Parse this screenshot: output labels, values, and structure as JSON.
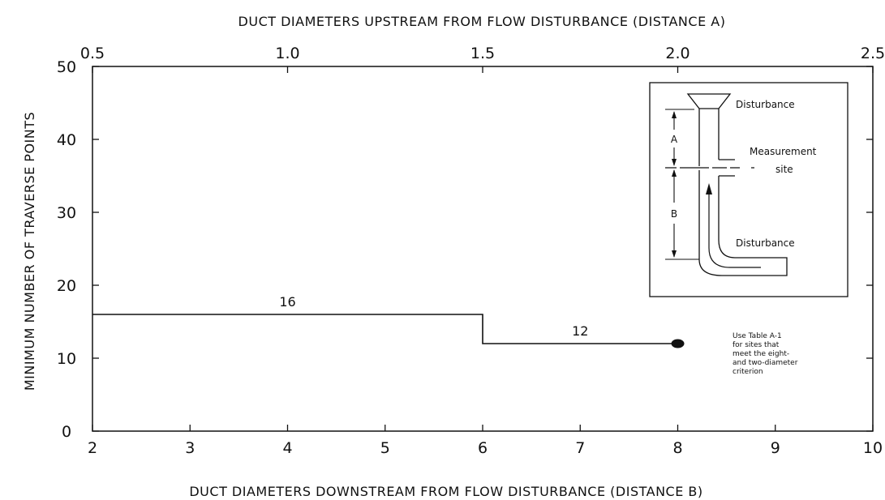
{
  "chart_data": {
    "type": "line",
    "title": "",
    "xlabel_bottom": "DUCT DIAMETERS DOWNSTREAM FROM FLOW DISTURBANCE (DISTANCE B)",
    "xlabel_top": "DUCT DIAMETERS UPSTREAM FROM FLOW DISTURBANCE (DISTANCE A)",
    "ylabel": "MINIMUM NUMBER OF TRAVERSE POINTS",
    "xlim_bottom": [
      2,
      10
    ],
    "xlim_top": [
      0.5,
      2.5
    ],
    "ylim": [
      0,
      50
    ],
    "x_ticks_bottom": [
      "2",
      "3",
      "4",
      "5",
      "6",
      "7",
      "8",
      "9",
      "10"
    ],
    "x_ticks_top": [
      "0.5",
      "1.0",
      "1.5",
      "2.0",
      "2.5"
    ],
    "y_ticks": [
      "0",
      "10",
      "20",
      "30",
      "40",
      "50"
    ],
    "grid": false,
    "series": [
      {
        "x": [
          2,
          6,
          6,
          8
        ],
        "y": [
          16,
          16,
          12,
          12
        ],
        "segment_labels": [
          "16",
          "12"
        ]
      }
    ],
    "endpoint": {
      "x": 8,
      "y": 12
    },
    "annotation": {
      "lines": [
        "Use Table A-1",
        "for sites that",
        "meet the eight-",
        "and two-diameter",
        "criterion"
      ]
    },
    "inset": {
      "label_a": "A",
      "label_b": "B",
      "disturbance_top": "Disturbance",
      "measurement_line1": "Measurement",
      "measurement_line2": "site",
      "disturbance_bottom": "Disturbance"
    }
  }
}
